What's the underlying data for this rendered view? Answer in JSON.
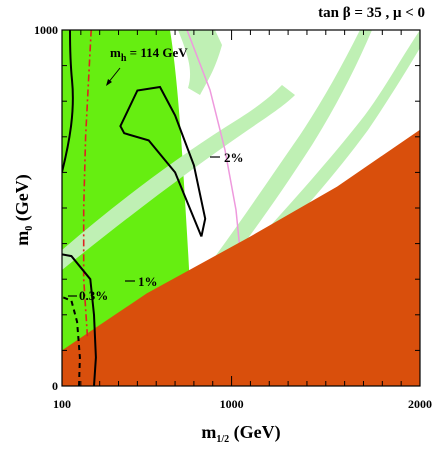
{
  "chart_data": {
    "type": "area",
    "title": "tan β = 35 ,  μ < 0",
    "xlabel": "m",
    "xlabel_sub": "1/2",
    "xlabel_unit": " (GeV)",
    "ylabel": "m",
    "ylabel_sub": "0",
    "ylabel_unit": " (GeV)",
    "xlim": [
      100,
      2000
    ],
    "ylim": [
      0,
      1000
    ],
    "x_ticks": [
      100,
      1000,
      2000
    ],
    "y_ticks": [
      0,
      1000
    ],
    "x_tick_labels": [
      "100",
      "1000",
      "2000"
    ],
    "y_tick_labels": [
      "0",
      "1000"
    ],
    "regions": [
      {
        "name": "excluded",
        "color": "#d94f0c",
        "boundary": [
          [
            100,
            100
          ],
          [
            550,
            260
          ],
          [
            1100,
            420
          ],
          [
            1560,
            560
          ],
          [
            2000,
            720
          ],
          [
            2000,
            0
          ],
          [
            100,
            0
          ]
        ]
      }
    ],
    "contours": [
      {
        "label": "0.3%",
        "style": "dashed",
        "points": [
          [
            190,
            0
          ],
          [
            195,
            80
          ],
          [
            180,
            180
          ],
          [
            150,
            240
          ],
          [
            100,
            250
          ]
        ]
      },
      {
        "label": "1%",
        "style": "solid",
        "points": [
          [
            270,
            0
          ],
          [
            280,
            80
          ],
          [
            270,
            200
          ],
          [
            250,
            300
          ],
          [
            150,
            365
          ],
          [
            100,
            370
          ]
        ]
      },
      {
        "label": "2%",
        "style": "solid",
        "points": [
          [
            840,
            420
          ],
          [
            860,
            470
          ],
          [
            800,
            620
          ],
          [
            700,
            760
          ],
          [
            620,
            840
          ],
          [
            500,
            830
          ],
          [
            410,
            730
          ],
          [
            430,
            710
          ],
          [
            560,
            690
          ],
          [
            700,
            600
          ],
          [
            770,
            510
          ],
          [
            840,
            420
          ]
        ]
      }
    ],
    "higgs_line": {
      "label": "m",
      "label_sub": "h",
      "label_value": " = 114 GeV",
      "points": [
        [
          235,
          140
        ],
        [
          215,
          300
        ],
        [
          215,
          500
        ],
        [
          225,
          700
        ],
        [
          245,
          900
        ],
        [
          255,
          1000
        ]
      ]
    },
    "annotations": [
      "0.3%",
      "1%",
      "2%"
    ],
    "colors": {
      "excluded": "#d94f0c",
      "green_region": "#66ee11",
      "light_strip": "#bff0b4",
      "higgs": "#dd2222",
      "pink_line": "#ee99dd"
    }
  }
}
